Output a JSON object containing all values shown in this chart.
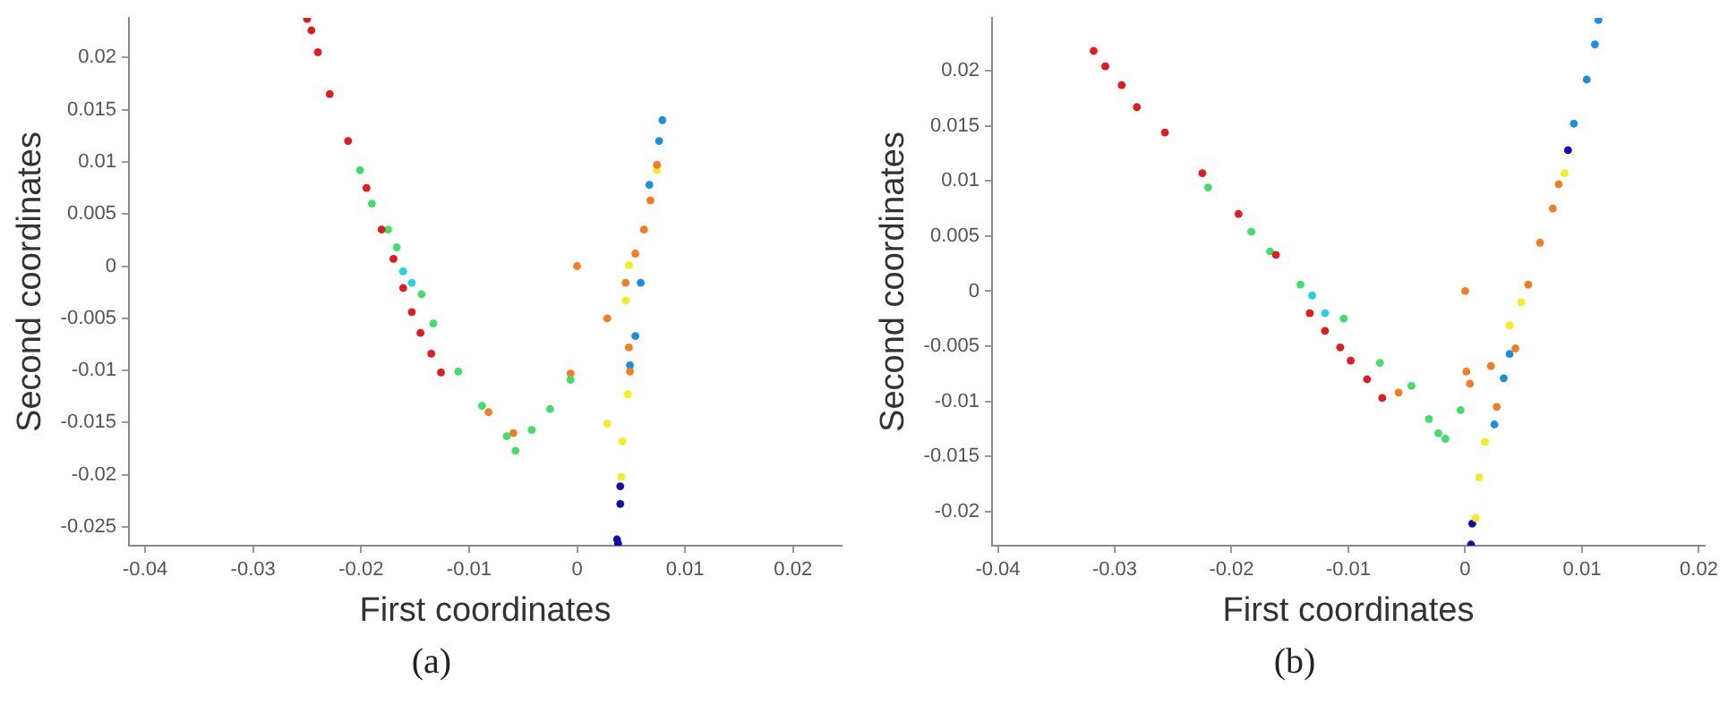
{
  "chart_data": [
    {
      "type": "scatter",
      "xlabel": "First coordinates",
      "ylabel": "Second coordinates",
      "annotations": [
        "(a)"
      ],
      "xlim": [
        -0.0415,
        0.0245
      ],
      "ylim": [
        -0.0268,
        0.0238
      ],
      "xticks": [
        -0.04,
        -0.03,
        -0.02,
        -0.01,
        0,
        0.01,
        0.02
      ],
      "yticks": [
        -0.025,
        -0.02,
        -0.015,
        -0.01,
        -0.005,
        0,
        0.005,
        0.01,
        0.015,
        0.02
      ],
      "grid": false,
      "legend": false,
      "marker": "circle",
      "series": [
        {
          "color": "#e41a1c",
          "x": [
            -0.025,
            -0.0246,
            -0.024,
            -0.0229,
            -0.0212,
            -0.0195,
            -0.0181,
            -0.017,
            -0.0161,
            -0.0153,
            -0.0145,
            -0.0135,
            -0.0126
          ],
          "values": [
            0.0237,
            0.0226,
            0.0205,
            0.0165,
            0.012,
            0.0075,
            0.0035,
            0.0007,
            -0.0021,
            -0.0044,
            -0.0064,
            -0.0084,
            -0.0102
          ]
        },
        {
          "color": "#3ee06a",
          "x": [
            -0.0201,
            -0.019,
            -0.0175,
            -0.0167,
            -0.0144,
            -0.0133,
            -0.011,
            -0.0088,
            -0.0065,
            -0.0057,
            -0.0042,
            -0.0025,
            -0.0006
          ],
          "values": [
            0.0092,
            0.006,
            0.0035,
            0.0018,
            -0.0027,
            -0.0055,
            -0.0101,
            -0.0134,
            -0.0163,
            -0.0177,
            -0.0157,
            -0.0137,
            -0.0109
          ]
        },
        {
          "color": "#22d3e6",
          "x": [
            -0.0161,
            -0.0153
          ],
          "values": [
            -0.0005,
            -0.0016
          ]
        },
        {
          "color": "#f57c1f",
          "x": [
            0,
            0.0028,
            -0.0006,
            -0.0082,
            -0.0059,
            0.0045,
            0.0054,
            0.0062,
            0.0068,
            0.0074,
            0.0048,
            0.0049
          ],
          "values": [
            0,
            -0.005,
            -0.0103,
            -0.014,
            -0.016,
            -0.0016,
            0.0012,
            0.0035,
            0.0063,
            0.0097,
            -0.0078,
            -0.0101
          ]
        },
        {
          "color": "#f4ee1b",
          "x": [
            0.0048,
            0.0045,
            0.0047,
            0.0042,
            0.0028,
            0.0041,
            0.0074
          ],
          "values": [
            0.0001,
            -0.0033,
            -0.0123,
            -0.0168,
            -0.0151,
            -0.0202,
            0.0092
          ]
        },
        {
          "color": "#1a8fe0",
          "x": [
            0.0079,
            0.0076,
            0.0067,
            0.0059,
            0.0054,
            0.0049
          ],
          "values": [
            0.014,
            0.012,
            0.0078,
            -0.0016,
            -0.0067,
            -0.0095
          ]
        },
        {
          "color": "#1010b0",
          "x": [
            0.004,
            0.004,
            0.0037,
            0.0038
          ],
          "values": [
            -0.0211,
            -0.0228,
            -0.0262,
            -0.0266
          ]
        }
      ]
    },
    {
      "type": "scatter",
      "xlabel": "First coordinates",
      "ylabel": "Second coordinates",
      "annotations": [
        "(b)"
      ],
      "xlim": [
        -0.0405,
        0.0205
      ],
      "ylim": [
        -0.0231,
        0.0248
      ],
      "xticks": [
        -0.04,
        -0.03,
        -0.02,
        -0.01,
        0,
        0.01,
        0.02
      ],
      "yticks": [
        -0.02,
        -0.015,
        -0.01,
        -0.005,
        0,
        0.005,
        0.01,
        0.015,
        0.02
      ],
      "grid": false,
      "legend": false,
      "marker": "circle",
      "series": [
        {
          "color": "#e41a1c",
          "x": [
            -0.0318,
            -0.0308,
            -0.0294,
            -0.0281,
            -0.0257,
            -0.0225,
            -0.0194,
            -0.0162,
            -0.0133,
            -0.012,
            -0.0107,
            -0.0098,
            -0.0084,
            -0.0071
          ],
          "values": [
            0.0218,
            0.0204,
            0.0187,
            0.0167,
            0.0144,
            0.0107,
            0.007,
            0.0033,
            -0.002,
            -0.0036,
            -0.0051,
            -0.0063,
            -0.008,
            -0.0097
          ]
        },
        {
          "color": "#3ee06a",
          "x": [
            -0.022,
            -0.0183,
            -0.0167,
            -0.0141,
            -0.0104,
            -0.0073,
            -0.0046,
            -0.0031,
            -0.0023,
            -0.0017,
            -0.0004
          ],
          "values": [
            0.0094,
            0.0054,
            0.0036,
            0.0006,
            -0.0025,
            -0.0065,
            -0.0086,
            -0.0116,
            -0.0129,
            -0.0134,
            -0.0108
          ]
        },
        {
          "color": "#22d3e6",
          "x": [
            -0.0131,
            -0.012
          ],
          "values": [
            -0.0004,
            -0.002
          ]
        },
        {
          "color": "#f57c1f",
          "x": [
            0,
            0.0001,
            0.0004,
            0.0022,
            0.0027,
            0.0043,
            0.0054,
            0.0064,
            0.0075,
            0.008,
            -0.0057
          ],
          "values": [
            0,
            -0.0073,
            -0.0084,
            -0.0068,
            -0.0105,
            -0.0052,
            0.0006,
            0.0044,
            0.0075,
            0.0097,
            -0.0092
          ]
        },
        {
          "color": "#f4ee1b",
          "x": [
            0.0009,
            0.0012,
            0.0017,
            0.0038,
            0.0048,
            0.0085
          ],
          "values": [
            -0.0206,
            -0.0169,
            -0.0137,
            -0.0031,
            -0.001,
            0.0107
          ]
        },
        {
          "color": "#1a8fe0",
          "x": [
            0.0114,
            0.0111,
            0.0104,
            0.0093,
            0.0038,
            0.0033,
            0.0025
          ],
          "values": [
            0.0246,
            0.0224,
            0.0192,
            0.0152,
            -0.0057,
            -0.0079,
            -0.0121
          ]
        },
        {
          "color": "#1010b0",
          "x": [
            0.0006,
            0.0005,
            0.0088
          ],
          "values": [
            -0.0211,
            -0.023,
            0.0128
          ]
        }
      ]
    }
  ]
}
